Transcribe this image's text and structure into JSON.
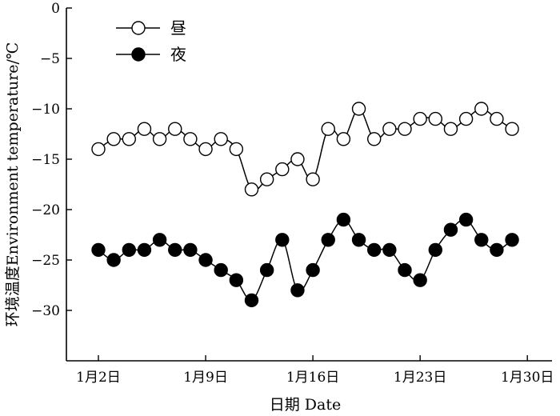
{
  "chart_data": {
    "type": "line",
    "xlabel": "日期 Date",
    "ylabel": "环境温度Environment temperature/℃",
    "x_ticks": [
      "1月2日",
      "1月9日",
      "1月16日",
      "1月23日",
      "1月30日"
    ],
    "y_ticks": [
      "0",
      "−5",
      "−10",
      "−15",
      "−20",
      "−25",
      "−30"
    ],
    "ylim": [
      -35,
      0
    ],
    "xlim": [
      "1月2日",
      "1月30日"
    ],
    "grid": false,
    "legend_position": "top-left",
    "x": [
      "1月2日",
      "1月3日",
      "1月4日",
      "1月5日",
      "1月6日",
      "1月7日",
      "1月8日",
      "1月9日",
      "1月10日",
      "1月11日",
      "1月12日",
      "1月13日",
      "1月14日",
      "1月15日",
      "1月16日",
      "1月17日",
      "1月18日",
      "1月19日",
      "1月20日",
      "1月21日",
      "1月22日",
      "1月23日",
      "1月24日",
      "1月25日",
      "1月26日",
      "1月27日",
      "1月28日",
      "1月29日"
    ],
    "series": [
      {
        "name": "昼",
        "marker": "open-circle",
        "values": [
          -14,
          -13,
          -13,
          -12,
          -13,
          -12,
          -13,
          -14,
          -13,
          -14,
          -18,
          -17,
          -16,
          -15,
          -17,
          -12,
          -13,
          -10,
          -13,
          -12,
          -12,
          -11,
          -11,
          -12,
          -11,
          -10,
          -11,
          -12
        ]
      },
      {
        "name": "夜",
        "marker": "filled-circle",
        "values": [
          -24,
          -25,
          -24,
          -24,
          -23,
          -24,
          -24,
          -25,
          -26,
          -27,
          -29,
          -26,
          -23,
          -28,
          -26,
          -23,
          -21,
          -23,
          -24,
          -24,
          -26,
          -27,
          -24,
          -22,
          -21,
          -23,
          -24,
          -23
        ]
      }
    ]
  }
}
